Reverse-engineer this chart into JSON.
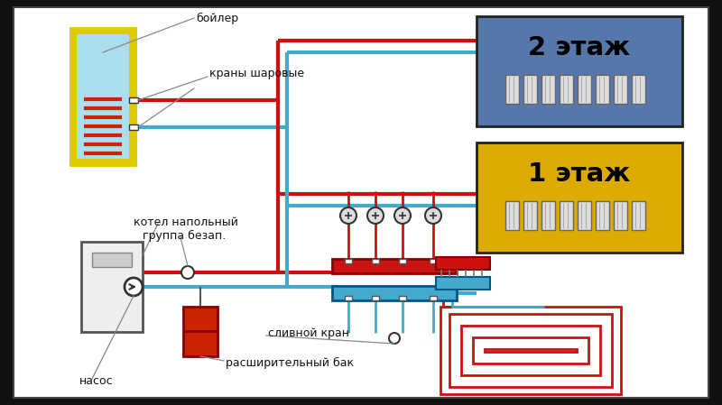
{
  "bg_outer": "#111111",
  "bg_inner": "#ffffff",
  "RED": "#cc1111",
  "BLUE": "#44aacc",
  "yellow_border": "#ddcc00",
  "boiler_fill": "#aaddee",
  "coil_red": "#cc2200",
  "floor2_bg": "#5577aa",
  "floor1_bg": "#ddaa00",
  "expansion_red": "#cc2200",
  "unit_gray": "#eeeeee",
  "label_line": "#888888",
  "label_text": "#111111",
  "floor2_label": "2 этаж",
  "floor1_label": "1 этаж",
  "boiler_label": "бойлер",
  "ball_valves_label": "краны шаровые",
  "floor_boiler_label": "котел напольный",
  "safety_label": "группа безап.",
  "drain_label": "сливной кран",
  "expansion_label": "расширительный бак",
  "pump_label": "насос"
}
